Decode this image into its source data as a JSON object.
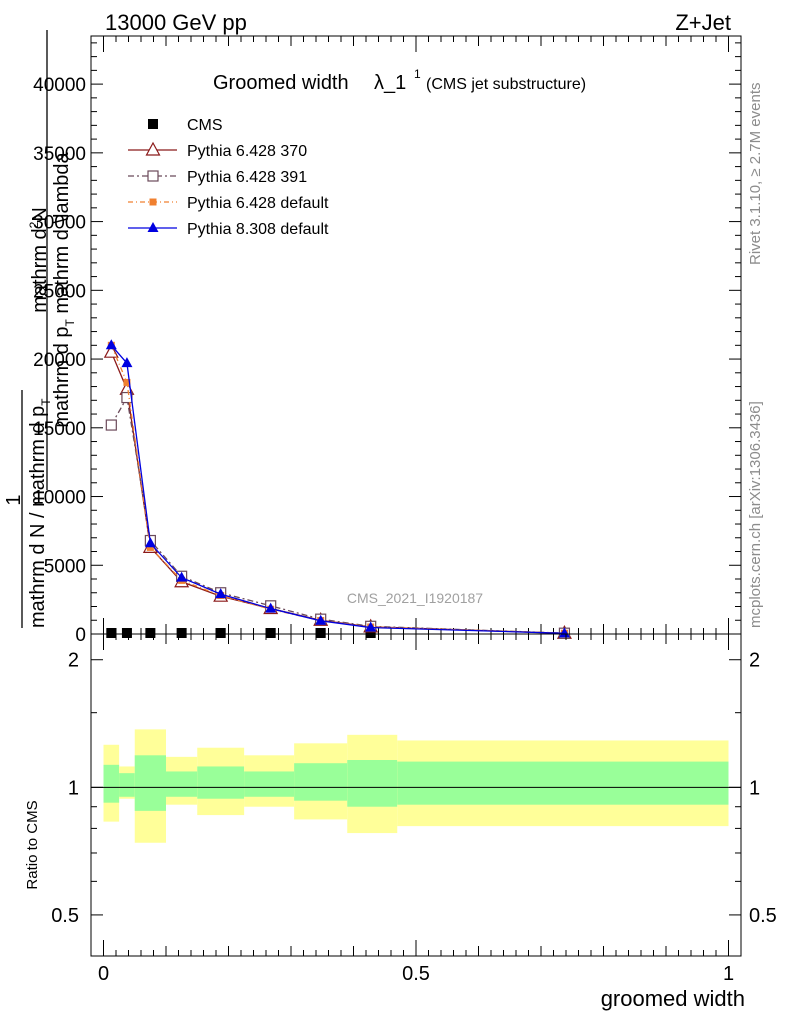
{
  "header": {
    "left": "13000 GeV pp",
    "right": "Z+Jet"
  },
  "side_labels": {
    "rivet": "Rivet 3.1.10, ≥ 2.7M events",
    "mcplots": "mcplots.cern.ch [arXiv:1306.3436]"
  },
  "watermark": "CMS_2021_I1920187",
  "colors": {
    "cms": "#000000",
    "py6_370": "#8b1a1a",
    "py6_391": "#6b4a5a",
    "py6_default": "#f08030",
    "py8_default": "#0000e0",
    "band_inner": "#99ff99",
    "band_outer": "#ffff99"
  },
  "chart_data": [
    {
      "type": "line",
      "title_main": "Groomed width",
      "title_symbol": "λ_1",
      "title_sup": "1",
      "title_sub": "(CMS jet substructure)",
      "ylabel_top": "mathrm d",
      "ylabel_top_sup": "2",
      "ylabel_top_end": "N",
      "ylabel_bottom": "mathrm d p",
      "ylabel_bottom_sub": "T",
      "ylabel_bottom_end": " mathrm d \\lambda",
      "ylabel_fraction_left_top": "1",
      "ylabel_fraction_left_bottom": "mathrm d N / mathrm d p",
      "ylabel_fraction_left_sub": "T",
      "xlim": [
        -0.02,
        1.02
      ],
      "ylim": [
        0,
        43500
      ],
      "yticks": [
        0,
        5000,
        10000,
        15000,
        20000,
        25000,
        30000,
        35000,
        40000
      ],
      "ytick_labels": [
        "0",
        "5000",
        "10000",
        "15000",
        "20000",
        "25000",
        "30000",
        "35000",
        "40000"
      ],
      "legend_placement": "top-left",
      "x": [
        0.0125,
        0.0375,
        0.075,
        0.125,
        0.1875,
        0.2675,
        0.3475,
        0.4275,
        0.7375
      ],
      "series": [
        {
          "name": "CMS",
          "marker": "square-filled",
          "values": [
            12,
            12,
            12,
            12,
            12,
            12,
            12,
            12,
            12
          ]
        },
        {
          "name": "Pythia 6.428 370",
          "marker": "triangle-open",
          "values": [
            20500,
            17800,
            6300,
            3800,
            2750,
            1850,
            1000,
            520,
            55
          ]
        },
        {
          "name": "Pythia 6.428 391",
          "marker": "square-open",
          "values": [
            15200,
            17200,
            6800,
            4200,
            3000,
            2050,
            1080,
            560,
            60
          ]
        },
        {
          "name": "Pythia 6.428 default",
          "marker": "square-filled-small",
          "values": [
            21000,
            18300,
            6300,
            3900,
            2800,
            1800,
            980,
            510,
            55
          ]
        },
        {
          "name": "Pythia 8.308 default",
          "marker": "triangle-filled",
          "values": [
            21000,
            19700,
            6600,
            4100,
            2900,
            1850,
            960,
            470,
            50
          ]
        }
      ]
    },
    {
      "type": "area",
      "ylabel": "Ratio to CMS",
      "xlabel": "groomed width",
      "xlim": [
        -0.02,
        1.02
      ],
      "ylim": [
        0.4,
        2.3
      ],
      "log_scale_y": true,
      "yticks": [
        0.5,
        1,
        2
      ],
      "ytick_labels": [
        "0.5",
        "1",
        "2"
      ],
      "xticks": [
        0,
        0.5,
        1
      ],
      "xtick_labels": [
        "0",
        "0.5",
        "1"
      ],
      "bins": [
        {
          "lo": 0.0,
          "hi": 0.025,
          "inner": [
            0.92,
            1.13
          ],
          "outer": [
            0.83,
            1.26
          ]
        },
        {
          "lo": 0.025,
          "hi": 0.05,
          "inner": [
            0.95,
            1.08
          ],
          "outer": [
            0.94,
            1.12
          ]
        },
        {
          "lo": 0.05,
          "hi": 0.1,
          "inner": [
            0.88,
            1.19
          ],
          "outer": [
            0.74,
            1.37
          ]
        },
        {
          "lo": 0.1,
          "hi": 0.15,
          "inner": [
            0.95,
            1.09
          ],
          "outer": [
            0.91,
            1.18
          ]
        },
        {
          "lo": 0.15,
          "hi": 0.225,
          "inner": [
            0.94,
            1.12
          ],
          "outer": [
            0.86,
            1.24
          ]
        },
        {
          "lo": 0.225,
          "hi": 0.305,
          "inner": [
            0.95,
            1.09
          ],
          "outer": [
            0.9,
            1.19
          ]
        },
        {
          "lo": 0.305,
          "hi": 0.39,
          "inner": [
            0.93,
            1.14
          ],
          "outer": [
            0.84,
            1.27
          ]
        },
        {
          "lo": 0.39,
          "hi": 0.47,
          "inner": [
            0.9,
            1.16
          ],
          "outer": [
            0.78,
            1.33
          ]
        },
        {
          "lo": 0.47,
          "hi": 1.0,
          "inner": [
            0.91,
            1.15
          ],
          "outer": [
            0.81,
            1.29
          ]
        }
      ]
    }
  ]
}
